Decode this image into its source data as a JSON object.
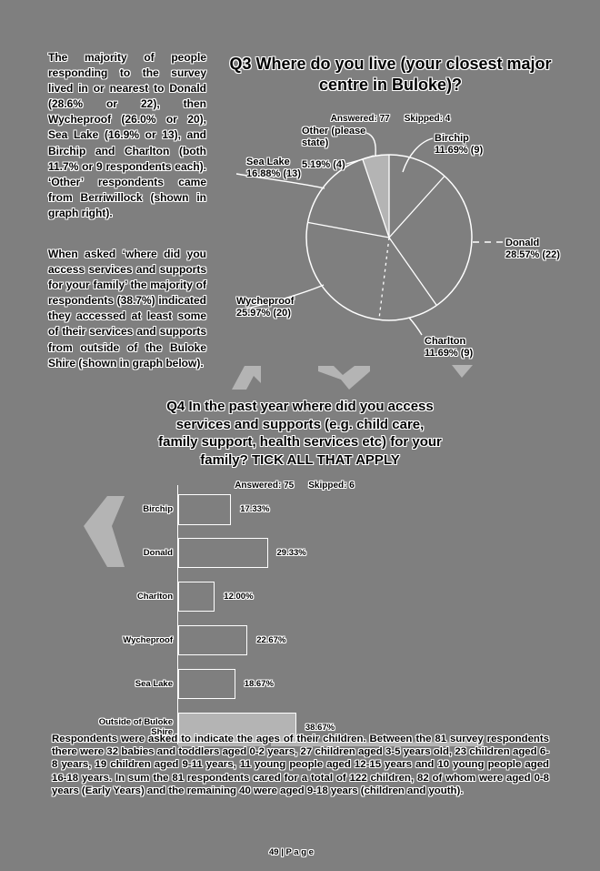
{
  "page": {
    "background_color": "#7f7f7f",
    "accent_color": "#b4b4b4",
    "footer_text": "49 | P a g e"
  },
  "left_column": {
    "paragraph_1": "The majority of people responding to the survey lived in or nearest to Donald (28.6% or 22), then Wycheproof (26.0% or 20), Sea Lake (16.9% or 13), and Birchip and Charlton (both 11.7% or 9 respondents each). ‘Other’ respondents came from Berriwillock (shown in graph right).",
    "paragraph_2": "When asked ‘where did you access services and supports for your family’ the majority of respondents (38.7%) indicated they accessed at least some of their services and supports from outside of the Buloke Shire (shown in graph below)."
  },
  "bottom_paragraph": "Respondents were asked to indicate the ages of their children. Between the 81 survey respondents there were 32 babies and toddlers aged 0-2 years, 27 children aged 3-5 years old, 23 children aged 6-8 years, 19 children aged 9-11 years, 11 young people aged 12-15 years and 10 young people aged 16-18 years. In sum the 81 respondents cared for a total of 122 children, 82 of whom were aged 0-8 years (Early Years) and the remaining 40 were aged 9-18 years (children and youth).",
  "chart_data": [
    {
      "type": "pie",
      "title": "Q3 Where do you live (your closest major centre in Buloke)?",
      "title_lines": [
        "Q3 Where do you live (your closest major",
        "centre in Buloke)?"
      ],
      "answered": 77,
      "skipped": 4,
      "answered_label": "Answered: 77",
      "skipped_label": "Skipped: 4",
      "slices": [
        {
          "label": "Birchip",
          "value": 11.69,
          "count": 9,
          "display": "11.69% (9)"
        },
        {
          "label": "Donald",
          "value": 28.57,
          "count": 22,
          "display": "28.57% (22)"
        },
        {
          "label": "Charlton",
          "value": 11.69,
          "count": 9,
          "display": "11.69% (9)"
        },
        {
          "label": "Wycheproof",
          "value": 25.97,
          "count": 20,
          "display": "25.97% (20)"
        },
        {
          "label": "Sea Lake",
          "value": 16.88,
          "count": 13,
          "display": "16.88% (13)"
        },
        {
          "label": "Other (please state)",
          "value": 5.19,
          "count": 4,
          "display": "5.19% (4)"
        }
      ],
      "highlighted_slice": "Other (please state)",
      "legend_position": "outside-callouts",
      "grid": false
    },
    {
      "type": "bar",
      "title": "Q4 In the past year where did you access services and supports (e.g. child care, family support, health services etc) for your family? TICK ALL THAT APPLY",
      "title_lines": [
        "Q4 In the past year where did you access",
        "services and supports (e.g. child care,",
        "family support, health services etc) for your",
        "family? TICK ALL THAT APPLY"
      ],
      "answered": 75,
      "skipped": 6,
      "answered_label": "Answered: 75",
      "skipped_label": "Skipped: 6",
      "orientation": "horizontal",
      "categories": [
        "Birchip",
        "Donald",
        "Charlton",
        "Wycheproof",
        "Sea Lake",
        "Outside of Buloke Shire"
      ],
      "values": [
        17.33,
        29.33,
        12.0,
        22.67,
        18.67,
        38.67
      ],
      "value_labels": [
        "17.33%",
        "29.33%",
        "12.00%",
        "22.67%",
        "18.67%",
        "38.67%"
      ],
      "xlim": [
        0,
        100
      ],
      "highlighted_category": "Outside of Buloke Shire",
      "grid": false
    }
  ]
}
